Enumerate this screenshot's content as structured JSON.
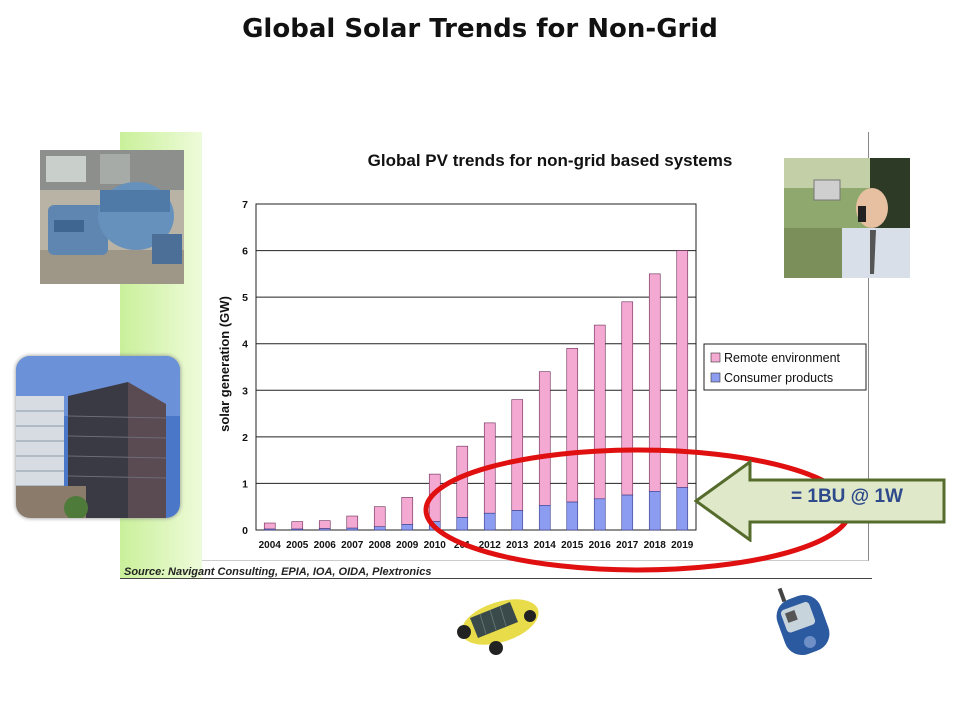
{
  "slide": {
    "title": "Global Solar Trends for Non-Grid",
    "source": "Source: Navigant Consulting, EPIA, IOA, OIDA, Plextronics",
    "callout": "= 1BU @ 1W"
  },
  "colors": {
    "remote": "#f3a9d2",
    "consumer": "#8c9cf0",
    "bar_stroke": "#6a2a55",
    "highlight_ellipse": "#e01010",
    "callout_fill": "#dfe8c8",
    "callout_stroke": "#566c2c"
  },
  "images": {
    "top_left": "industrial-turbine-photo",
    "mid_left": "office-buildings-photo",
    "top_right": "man-on-phone-photo",
    "bottom_center": "solar-toy-car-photo",
    "bottom_right": "glucose-meter-photo"
  },
  "chart_data": {
    "type": "bar",
    "stacked": true,
    "title": "Global PV trends for non-grid based systems",
    "ylabel": "solar generation (GW)",
    "xlabel": "",
    "ylim": [
      0,
      7
    ],
    "yticks": [
      "0",
      "1",
      "2",
      "3",
      "4",
      "5",
      "6",
      "7"
    ],
    "grid": true,
    "legend_position": "right",
    "categories": [
      "2004",
      "2005",
      "2006",
      "2007",
      "2008",
      "2009",
      "2010",
      "2011",
      "2012",
      "2013",
      "2014",
      "2015",
      "2016",
      "2017",
      "2018",
      "2019"
    ],
    "category_labels": [
      "2004",
      "2005",
      "2006",
      "2007",
      "2008",
      "2009",
      "2010",
      "201",
      "2012",
      "2013",
      "2014",
      "2015",
      "2016",
      "2017",
      "2018",
      "2019"
    ],
    "series": [
      {
        "name": "Consumer products",
        "values": [
          0.02,
          0.02,
          0.03,
          0.04,
          0.07,
          0.12,
          0.18,
          0.27,
          0.36,
          0.42,
          0.53,
          0.6,
          0.67,
          0.75,
          0.83,
          0.91
        ]
      },
      {
        "name": "Remote environment",
        "values": [
          0.13,
          0.16,
          0.17,
          0.26,
          0.43,
          0.58,
          1.02,
          1.53,
          1.94,
          2.38,
          2.87,
          3.3,
          3.73,
          4.15,
          4.67,
          5.09
        ]
      }
    ],
    "totals": [
      0.15,
      0.18,
      0.2,
      0.3,
      0.5,
      0.7,
      1.2,
      1.8,
      2.3,
      2.8,
      3.4,
      3.9,
      4.4,
      4.9,
      5.5,
      6.0
    ]
  }
}
